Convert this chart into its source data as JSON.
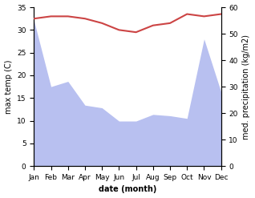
{
  "months": [
    "Jan",
    "Feb",
    "Mar",
    "Apr",
    "May",
    "Jun",
    "Jul",
    "Aug",
    "Sep",
    "Oct",
    "Nov",
    "Dec"
  ],
  "x": [
    0,
    1,
    2,
    3,
    4,
    5,
    6,
    7,
    8,
    9,
    10,
    11
  ],
  "max_temp": [
    32.5,
    33.0,
    33.0,
    32.5,
    31.5,
    30.0,
    29.5,
    31.0,
    31.5,
    33.5,
    33.0,
    33.5
  ],
  "precipitation": [
    55.0,
    30.0,
    32.0,
    23.0,
    22.0,
    17.0,
    17.0,
    19.5,
    19.0,
    18.0,
    48.0,
    28.0
  ],
  "temp_color": "#cc4444",
  "precip_fill_color": "#b8c0f0",
  "ylabel_left": "max temp (C)",
  "ylabel_right": "med. precipitation (kg/m2)",
  "xlabel": "date (month)",
  "ylim_left": [
    0,
    35
  ],
  "ylim_right": [
    0,
    60
  ],
  "yticks_left": [
    0,
    5,
    10,
    15,
    20,
    25,
    30,
    35
  ],
  "yticks_right": [
    0,
    10,
    20,
    30,
    40,
    50,
    60
  ],
  "bg_color": "#ffffff",
  "label_fontsize": 7,
  "tick_fontsize": 6.5
}
